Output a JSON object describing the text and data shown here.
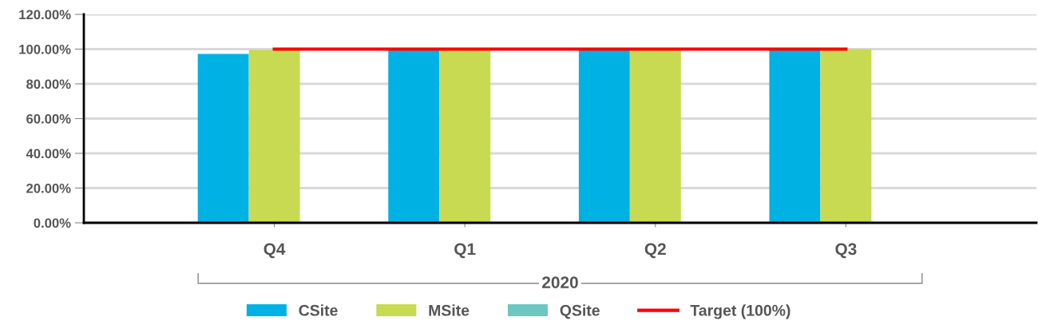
{
  "chart_data": {
    "type": "bar",
    "categories": [
      "Q4",
      "Q1",
      "Q2",
      "Q3"
    ],
    "xlabel": "2020",
    "series": [
      {
        "name": "CSite",
        "color": "#00b2e3",
        "values": [
          97.2,
          100,
          100,
          100
        ]
      },
      {
        "name": "MSite",
        "color": "#c8d952",
        "values": [
          99.5,
          100,
          100,
          100
        ]
      },
      {
        "name": "QSite",
        "color": "#6cc8bf",
        "values": [
          null,
          null,
          null,
          null
        ]
      },
      {
        "name": "Target (100%)",
        "type": "line",
        "color": "#ff0000",
        "values": [
          100,
          100,
          100,
          100
        ]
      }
    ],
    "ylim": [
      0,
      120
    ],
    "yticks": [
      {
        "value": 0,
        "label": "0.00%"
      },
      {
        "value": 20,
        "label": "20.00%"
      },
      {
        "value": 40,
        "label": "40.00%"
      },
      {
        "value": 60,
        "label": "60.00%"
      },
      {
        "value": 80,
        "label": "80.00%"
      },
      {
        "value": 100,
        "label": "100.00%"
      },
      {
        "value": 120,
        "label": "120.00%"
      }
    ],
    "grid": "y",
    "legend": "bottom"
  }
}
